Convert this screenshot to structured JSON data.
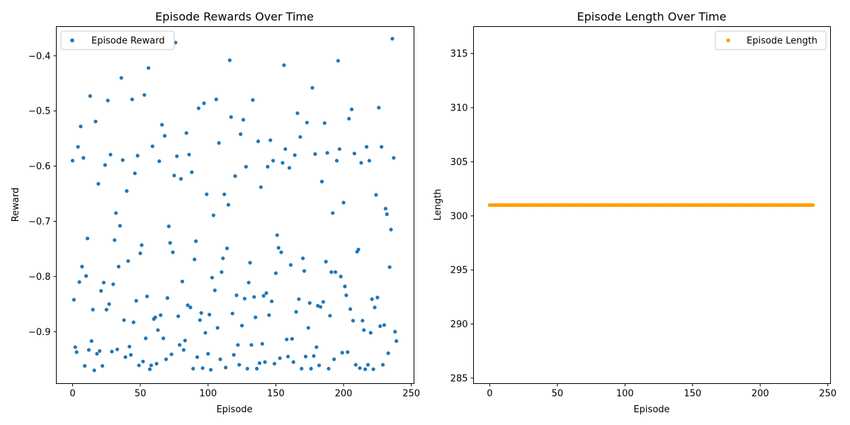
{
  "chart_data": [
    {
      "type": "scatter",
      "title": "Episode Rewards Over Time",
      "xlabel": "Episode",
      "ylabel": "Reward",
      "xlim": [
        -12,
        252
      ],
      "ylim": [
        -0.994,
        -0.347
      ],
      "xticks": [
        0,
        50,
        100,
        150,
        200,
        250
      ],
      "yticks": [
        -0.9,
        -0.8,
        -0.7,
        -0.6,
        -0.5,
        -0.4
      ],
      "ytick_labels": [
        "−0.9",
        "−0.8",
        "−0.7",
        "−0.6",
        "−0.5",
        "−0.4"
      ],
      "grid": false,
      "legend": "upper left",
      "color": "#1f77b4",
      "series": [
        {
          "name": "Episode Reward",
          "x": [
            0,
            1,
            2,
            3,
            4,
            5,
            6,
            7,
            8,
            9,
            10,
            11,
            12,
            13,
            14,
            15,
            16,
            17,
            18,
            19,
            20,
            21,
            22,
            23,
            24,
            25,
            26,
            27,
            28,
            29,
            30,
            31,
            32,
            33,
            34,
            35,
            36,
            37,
            38,
            39,
            40,
            41,
            42,
            43,
            44,
            45,
            46,
            47,
            48,
            49,
            50,
            51,
            52,
            53,
            54,
            55,
            56,
            57,
            58,
            59,
            60,
            61,
            62,
            63,
            64,
            65,
            66,
            67,
            68,
            69,
            70,
            71,
            72,
            73,
            74,
            75,
            76,
            77,
            78,
            79,
            80,
            81,
            82,
            83,
            84,
            85,
            86,
            87,
            88,
            89,
            90,
            91,
            92,
            93,
            94,
            95,
            96,
            97,
            98,
            99,
            100,
            101,
            102,
            103,
            104,
            105,
            106,
            107,
            108,
            109,
            110,
            111,
            112,
            113,
            114,
            115,
            116,
            117,
            118,
            119,
            120,
            121,
            122,
            123,
            124,
            125,
            126,
            127,
            128,
            129,
            130,
            131,
            132,
            133,
            134,
            135,
            136,
            137,
            138,
            139,
            140,
            141,
            142,
            143,
            144,
            145,
            146,
            147,
            148,
            149,
            150,
            151,
            152,
            153,
            154,
            155,
            156,
            157,
            158,
            159,
            160,
            161,
            162,
            163,
            164,
            165,
            166,
            167,
            168,
            169,
            170,
            171,
            172,
            173,
            174,
            175,
            176,
            177,
            178,
            179,
            180,
            181,
            182,
            183,
            184,
            185,
            186,
            187,
            188,
            189,
            190,
            191,
            192,
            193,
            194,
            195,
            196,
            197,
            198,
            199,
            200,
            201,
            202,
            203,
            204,
            205,
            206,
            207,
            208,
            209,
            210,
            211,
            212,
            213,
            214,
            215,
            216,
            217,
            218,
            219,
            220,
            221,
            222,
            223,
            224,
            225,
            226,
            227,
            228,
            229,
            230,
            231,
            232,
            233,
            234,
            235,
            236,
            237,
            238,
            239
          ],
          "y": [
            -0.59,
            -0.842,
            -0.928,
            -0.937,
            -0.565,
            -0.81,
            -0.528,
            -0.782,
            -0.585,
            -0.962,
            -0.799,
            -0.731,
            -0.933,
            -0.473,
            -0.917,
            -0.86,
            -0.97,
            -0.519,
            -0.94,
            -0.632,
            -0.935,
            -0.826,
            -0.962,
            -0.811,
            -0.598,
            -0.86,
            -0.481,
            -0.85,
            -0.579,
            -0.936,
            -0.814,
            -0.734,
            -0.685,
            -0.932,
            -0.782,
            -0.708,
            -0.44,
            -0.589,
            -0.879,
            -0.946,
            -0.645,
            -0.772,
            -0.927,
            -0.942,
            -0.479,
            -0.883,
            -0.613,
            -0.844,
            -0.581,
            -0.961,
            -0.758,
            -0.743,
            -0.954,
            -0.471,
            -0.912,
            -0.836,
            -0.422,
            -0.968,
            -0.961,
            -0.564,
            -0.877,
            -0.874,
            -0.958,
            -0.897,
            -0.591,
            -0.87,
            -0.525,
            -0.912,
            -0.545,
            -0.95,
            -0.839,
            -0.709,
            -0.739,
            -0.941,
            -0.756,
            -0.617,
            -0.376,
            -0.582,
            -0.872,
            -0.924,
            -0.623,
            -0.809,
            -0.933,
            -0.916,
            -0.54,
            -0.852,
            -0.579,
            -0.856,
            -0.611,
            -0.967,
            -0.769,
            -0.736,
            -0.946,
            -0.495,
            -0.879,
            -0.866,
            -0.966,
            -0.486,
            -0.902,
            -0.651,
            -0.94,
            -0.869,
            -0.969,
            -0.802,
            -0.689,
            -0.825,
            -0.479,
            -0.893,
            -0.558,
            -0.95,
            -0.792,
            -0.767,
            -0.651,
            -0.965,
            -0.749,
            -0.67,
            -0.408,
            -0.511,
            -0.867,
            -0.942,
            -0.618,
            -0.834,
            -0.924,
            -0.96,
            -0.542,
            -0.889,
            -0.516,
            -0.84,
            -0.601,
            -0.967,
            -0.811,
            -0.775,
            -0.924,
            -0.48,
            -0.837,
            -0.874,
            -0.967,
            -0.555,
            -0.957,
            -0.638,
            -0.922,
            -0.835,
            -0.955,
            -0.83,
            -0.601,
            -0.87,
            -0.553,
            -0.845,
            -0.59,
            -0.958,
            -0.794,
            -0.725,
            -0.748,
            -0.948,
            -0.756,
            -0.594,
            -0.417,
            -0.569,
            -0.914,
            -0.945,
            -0.603,
            -0.779,
            -0.913,
            -0.955,
            -0.58,
            -0.864,
            -0.504,
            -0.841,
            -0.547,
            -0.967,
            -0.767,
            -0.79,
            -0.945,
            -0.521,
            -0.893,
            -0.848,
            -0.967,
            -0.458,
            -0.944,
            -0.578,
            -0.928,
            -0.853,
            -0.961,
            -0.855,
            -0.628,
            -0.846,
            -0.522,
            -0.773,
            -0.576,
            -0.967,
            -0.871,
            -0.792,
            -0.685,
            -0.95,
            -0.792,
            -0.59,
            -0.409,
            -0.569,
            -0.8,
            -0.938,
            -0.666,
            -0.818,
            -0.834,
            -0.937,
            -0.514,
            -0.859,
            -0.497,
            -0.88,
            -0.577,
            -0.96,
            -0.755,
            -0.751,
            -0.966,
            -0.594,
            -0.88,
            -0.897,
            -0.968,
            -0.565,
            -0.96,
            -0.59,
            -0.902,
            -0.841,
            -0.968,
            -0.856,
            -0.652,
            -0.838,
            -0.494,
            -0.89,
            -0.565,
            -0.96,
            -0.888,
            -0.677,
            -0.687,
            -0.939,
            -0.783,
            -0.715,
            -0.369,
            -0.585,
            -0.9,
            -0.917
          ]
        }
      ]
    },
    {
      "type": "scatter",
      "title": "Episode Length Over Time",
      "xlabel": "Episode",
      "ylabel": "Length",
      "xlim": [
        -12,
        252
      ],
      "ylim": [
        284.5,
        317.5
      ],
      "xticks": [
        0,
        50,
        100,
        150,
        200,
        250
      ],
      "yticks": [
        285,
        290,
        295,
        300,
        305,
        310,
        315
      ],
      "grid": false,
      "legend": "upper right",
      "color": "#ff9f00",
      "series": [
        {
          "name": "Episode Length",
          "x_range": [
            0,
            239
          ],
          "constant_y": 301
        }
      ]
    }
  ]
}
